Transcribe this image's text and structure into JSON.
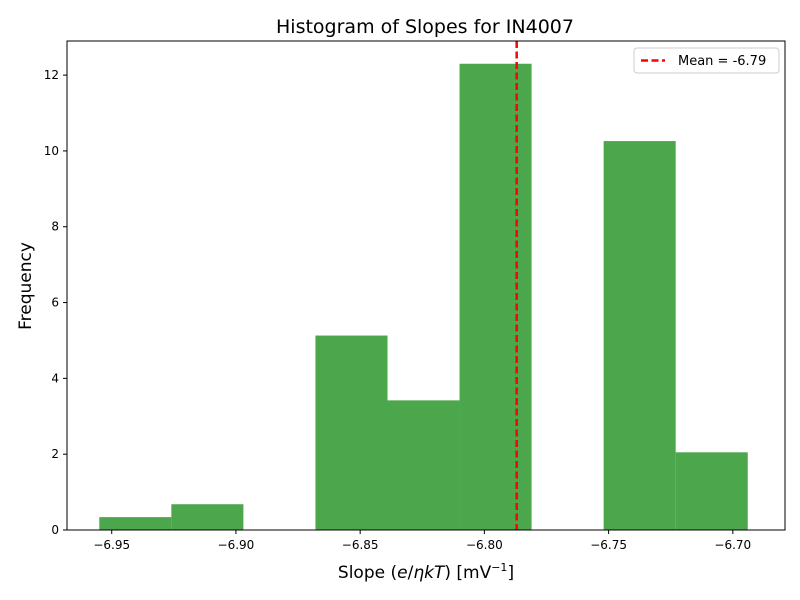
{
  "chart_data": {
    "type": "bar",
    "title": "Histogram of Slopes for IN4007",
    "xlabel": "Slope (e/ηkT) [mV⁻¹]",
    "xlabel_parts": {
      "prefix": "Slope (",
      "e": "e",
      "slash": "/",
      "eta": "η",
      "k": "k",
      "T": "T",
      "mid": ") [mV",
      "sup": "−1",
      "suffix": "]"
    },
    "ylabel": "Frequency",
    "xlim": [
      -6.968,
      -6.679
    ],
    "ylim": [
      0,
      12.9
    ],
    "x_ticks": [
      -6.95,
      -6.9,
      -6.85,
      -6.8,
      -6.75,
      -6.7
    ],
    "x_tick_labels": [
      "−6.95",
      "−6.90",
      "−6.85",
      "−6.80",
      "−6.75",
      "−6.70"
    ],
    "y_ticks": [
      0,
      2,
      4,
      6,
      8,
      10,
      12
    ],
    "y_tick_labels": [
      "0",
      "2",
      "4",
      "6",
      "8",
      "10",
      "12"
    ],
    "bin_edges": [
      -6.955,
      -6.926,
      -6.897,
      -6.868,
      -6.839,
      -6.81,
      -6.781,
      -6.752,
      -6.723,
      -6.694
    ],
    "values": [
      0.34,
      0.68,
      0,
      5.13,
      3.42,
      12.3,
      0,
      10.26,
      2.05
    ],
    "bar_color": "#4ca64c",
    "mean": -6.787,
    "mean_color": "#ff0000",
    "legend": {
      "label": "Mean = -6.79",
      "placement": "upper right"
    },
    "grid": false
  }
}
